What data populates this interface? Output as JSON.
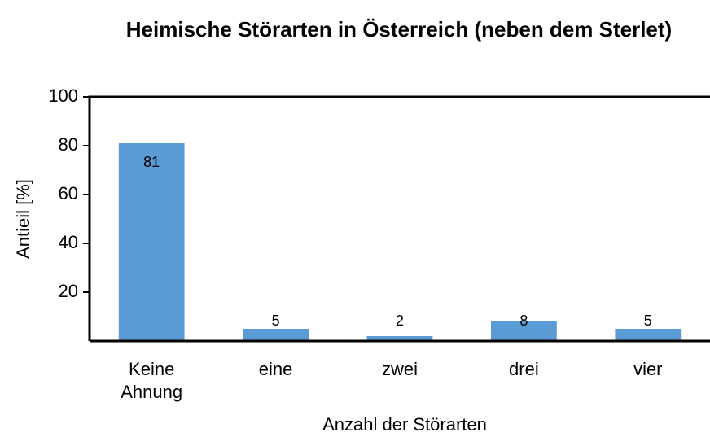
{
  "chart_data": {
    "type": "bar",
    "title": "Heimische Störarten in Österreich (neben dem Sterlet)",
    "x_label": "Anzahl der Störarten",
    "y_label": "Antieil [%]",
    "categories": [
      "Keine Ahnung",
      "eine",
      "zwei",
      "drei",
      "vier"
    ],
    "values": [
      81,
      5,
      2,
      8,
      5
    ],
    "color": "#5b9bd5",
    "ylim": [
      0,
      100
    ],
    "yticks": [
      20,
      40,
      60,
      80,
      100
    ],
    "grid": false
  }
}
